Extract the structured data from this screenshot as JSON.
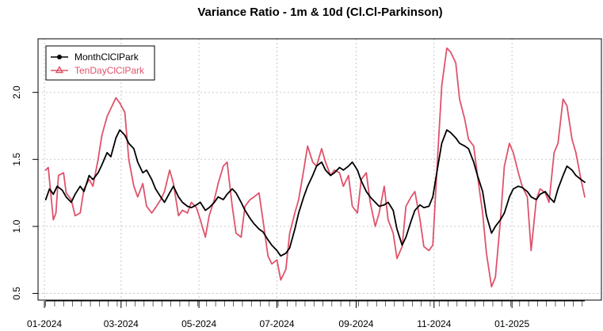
{
  "chart_data": {
    "type": "line",
    "title": "Variance Ratio - 1m & 10d (Cl.Cl-Parkinson)",
    "xlabel": "",
    "ylabel": "",
    "ylim": [
      0.45,
      2.4
    ],
    "yticks": [
      0.5,
      1.0,
      1.5,
      2.0
    ],
    "ytick_labels": [
      "0.5",
      "1.0",
      "1.5",
      "2.0"
    ],
    "xlim": [
      "2023-12-27",
      "2025-03-12"
    ],
    "xticks": [
      "2024-01-01",
      "2024-03-01",
      "2024-05-01",
      "2024-07-01",
      "2024-09-01",
      "2024-11-01",
      "2025-01-01"
    ],
    "xtick_labels": [
      "01-2024",
      "03-2024",
      "05-2024",
      "07-2024",
      "09-2024",
      "11-2024",
      "01-2025"
    ],
    "grid": true,
    "legend_position": "top-left",
    "series": [
      {
        "name": "MonthClClPark",
        "color": "#000000",
        "marker": "circle",
        "points": [
          [
            "2024-01-02",
            1.2
          ],
          [
            "2024-01-05",
            1.28
          ],
          [
            "2024-01-08",
            1.24
          ],
          [
            "2024-01-11",
            1.3
          ],
          [
            "2024-01-15",
            1.27
          ],
          [
            "2024-01-18",
            1.22
          ],
          [
            "2024-01-22",
            1.18
          ],
          [
            "2024-01-25",
            1.24
          ],
          [
            "2024-01-29",
            1.3
          ],
          [
            "2024-02-01",
            1.26
          ],
          [
            "2024-02-05",
            1.38
          ],
          [
            "2024-02-08",
            1.35
          ],
          [
            "2024-02-12",
            1.4
          ],
          [
            "2024-02-15",
            1.46
          ],
          [
            "2024-02-19",
            1.55
          ],
          [
            "2024-02-22",
            1.52
          ],
          [
            "2024-02-26",
            1.66
          ],
          [
            "2024-02-29",
            1.72
          ],
          [
            "2024-03-04",
            1.68
          ],
          [
            "2024-03-07",
            1.62
          ],
          [
            "2024-03-11",
            1.58
          ],
          [
            "2024-03-14",
            1.48
          ],
          [
            "2024-03-18",
            1.4
          ],
          [
            "2024-03-21",
            1.42
          ],
          [
            "2024-03-25",
            1.35
          ],
          [
            "2024-03-28",
            1.28
          ],
          [
            "2024-04-01",
            1.22
          ],
          [
            "2024-04-04",
            1.18
          ],
          [
            "2024-04-08",
            1.25
          ],
          [
            "2024-04-11",
            1.3
          ],
          [
            "2024-04-15",
            1.22
          ],
          [
            "2024-04-18",
            1.18
          ],
          [
            "2024-04-22",
            1.15
          ],
          [
            "2024-04-25",
            1.14
          ],
          [
            "2024-04-29",
            1.16
          ],
          [
            "2024-05-02",
            1.18
          ],
          [
            "2024-05-06",
            1.12
          ],
          [
            "2024-05-09",
            1.14
          ],
          [
            "2024-05-13",
            1.18
          ],
          [
            "2024-05-16",
            1.22
          ],
          [
            "2024-05-20",
            1.2
          ],
          [
            "2024-05-23",
            1.24
          ],
          [
            "2024-05-27",
            1.28
          ],
          [
            "2024-05-30",
            1.25
          ],
          [
            "2024-06-03",
            1.18
          ],
          [
            "2024-06-06",
            1.12
          ],
          [
            "2024-06-10",
            1.06
          ],
          [
            "2024-06-13",
            1.02
          ],
          [
            "2024-06-17",
            0.98
          ],
          [
            "2024-06-20",
            0.96
          ],
          [
            "2024-06-24",
            0.9
          ],
          [
            "2024-06-27",
            0.86
          ],
          [
            "2024-07-01",
            0.82
          ],
          [
            "2024-07-04",
            0.78
          ],
          [
            "2024-07-08",
            0.8
          ],
          [
            "2024-07-11",
            0.84
          ],
          [
            "2024-07-15",
            0.98
          ],
          [
            "2024-07-18",
            1.1
          ],
          [
            "2024-07-22",
            1.22
          ],
          [
            "2024-07-25",
            1.3
          ],
          [
            "2024-07-29",
            1.38
          ],
          [
            "2024-08-01",
            1.45
          ],
          [
            "2024-08-05",
            1.48
          ],
          [
            "2024-08-08",
            1.42
          ],
          [
            "2024-08-12",
            1.38
          ],
          [
            "2024-08-15",
            1.4
          ],
          [
            "2024-08-19",
            1.44
          ],
          [
            "2024-08-22",
            1.42
          ],
          [
            "2024-08-26",
            1.45
          ],
          [
            "2024-08-29",
            1.48
          ],
          [
            "2024-09-02",
            1.42
          ],
          [
            "2024-09-05",
            1.34
          ],
          [
            "2024-09-09",
            1.26
          ],
          [
            "2024-09-12",
            1.22
          ],
          [
            "2024-09-16",
            1.18
          ],
          [
            "2024-09-19",
            1.15
          ],
          [
            "2024-09-23",
            1.16
          ],
          [
            "2024-09-26",
            1.18
          ],
          [
            "2024-09-30",
            1.12
          ],
          [
            "2024-10-03",
            0.98
          ],
          [
            "2024-10-07",
            0.86
          ],
          [
            "2024-10-10",
            0.92
          ],
          [
            "2024-10-14",
            1.04
          ],
          [
            "2024-10-17",
            1.12
          ],
          [
            "2024-10-21",
            1.16
          ],
          [
            "2024-10-24",
            1.14
          ],
          [
            "2024-10-28",
            1.15
          ],
          [
            "2024-10-31",
            1.22
          ],
          [
            "2024-11-04",
            1.45
          ],
          [
            "2024-11-07",
            1.62
          ],
          [
            "2024-11-11",
            1.72
          ],
          [
            "2024-11-14",
            1.7
          ],
          [
            "2024-11-18",
            1.66
          ],
          [
            "2024-11-21",
            1.62
          ],
          [
            "2024-11-25",
            1.6
          ],
          [
            "2024-11-28",
            1.58
          ],
          [
            "2024-12-02",
            1.48
          ],
          [
            "2024-12-05",
            1.38
          ],
          [
            "2024-12-09",
            1.26
          ],
          [
            "2024-12-12",
            1.08
          ],
          [
            "2024-12-16",
            0.95
          ],
          [
            "2024-12-19",
            1.0
          ],
          [
            "2024-12-23",
            1.05
          ],
          [
            "2024-12-26",
            1.1
          ],
          [
            "2024-12-30",
            1.22
          ],
          [
            "2025-01-02",
            1.28
          ],
          [
            "2025-01-06",
            1.3
          ],
          [
            "2025-01-09",
            1.29
          ],
          [
            "2025-01-13",
            1.26
          ],
          [
            "2025-01-16",
            1.22
          ],
          [
            "2025-01-20",
            1.2
          ],
          [
            "2025-01-23",
            1.24
          ],
          [
            "2025-01-27",
            1.26
          ],
          [
            "2025-01-30",
            1.22
          ],
          [
            "2025-02-03",
            1.18
          ],
          [
            "2025-02-06",
            1.28
          ],
          [
            "2025-02-10",
            1.38
          ],
          [
            "2025-02-13",
            1.45
          ],
          [
            "2025-02-17",
            1.42
          ],
          [
            "2025-02-20",
            1.38
          ],
          [
            "2025-02-24",
            1.35
          ],
          [
            "2025-02-27",
            1.33
          ]
        ]
      },
      {
        "name": "TenDayClClPark",
        "color": "#DF536B",
        "marker": "triangle",
        "points": [
          [
            "2024-01-02",
            1.42
          ],
          [
            "2024-01-04",
            1.44
          ],
          [
            "2024-01-08",
            1.05
          ],
          [
            "2024-01-10",
            1.1
          ],
          [
            "2024-01-12",
            1.38
          ],
          [
            "2024-01-16",
            1.4
          ],
          [
            "2024-01-18",
            1.25
          ],
          [
            "2024-01-22",
            1.2
          ],
          [
            "2024-01-25",
            1.08
          ],
          [
            "2024-01-29",
            1.1
          ],
          [
            "2024-02-01",
            1.28
          ],
          [
            "2024-02-05",
            1.35
          ],
          [
            "2024-02-08",
            1.3
          ],
          [
            "2024-02-12",
            1.5
          ],
          [
            "2024-02-15",
            1.68
          ],
          [
            "2024-02-19",
            1.82
          ],
          [
            "2024-02-22",
            1.88
          ],
          [
            "2024-02-26",
            1.96
          ],
          [
            "2024-02-29",
            1.92
          ],
          [
            "2024-03-04",
            1.85
          ],
          [
            "2024-03-07",
            1.5
          ],
          [
            "2024-03-11",
            1.3
          ],
          [
            "2024-03-14",
            1.22
          ],
          [
            "2024-03-18",
            1.32
          ],
          [
            "2024-03-21",
            1.15
          ],
          [
            "2024-03-25",
            1.1
          ],
          [
            "2024-03-28",
            1.14
          ],
          [
            "2024-04-01",
            1.2
          ],
          [
            "2024-04-04",
            1.26
          ],
          [
            "2024-04-08",
            1.42
          ],
          [
            "2024-04-11",
            1.32
          ],
          [
            "2024-04-15",
            1.08
          ],
          [
            "2024-04-18",
            1.12
          ],
          [
            "2024-04-22",
            1.1
          ],
          [
            "2024-04-25",
            1.18
          ],
          [
            "2024-04-29",
            1.14
          ],
          [
            "2024-05-02",
            1.05
          ],
          [
            "2024-05-06",
            0.92
          ],
          [
            "2024-05-09",
            1.08
          ],
          [
            "2024-05-13",
            1.2
          ],
          [
            "2024-05-16",
            1.32
          ],
          [
            "2024-05-20",
            1.45
          ],
          [
            "2024-05-23",
            1.48
          ],
          [
            "2024-05-27",
            1.15
          ],
          [
            "2024-05-30",
            0.95
          ],
          [
            "2024-06-03",
            0.92
          ],
          [
            "2024-06-06",
            1.15
          ],
          [
            "2024-06-10",
            1.2
          ],
          [
            "2024-06-13",
            1.22
          ],
          [
            "2024-06-17",
            1.25
          ],
          [
            "2024-06-20",
            1.05
          ],
          [
            "2024-06-24",
            0.78
          ],
          [
            "2024-06-27",
            0.72
          ],
          [
            "2024-07-01",
            0.75
          ],
          [
            "2024-07-04",
            0.6
          ],
          [
            "2024-07-08",
            0.68
          ],
          [
            "2024-07-11",
            0.95
          ],
          [
            "2024-07-15",
            1.1
          ],
          [
            "2024-07-18",
            1.2
          ],
          [
            "2024-07-22",
            1.42
          ],
          [
            "2024-07-25",
            1.6
          ],
          [
            "2024-07-29",
            1.48
          ],
          [
            "2024-08-01",
            1.45
          ],
          [
            "2024-08-05",
            1.58
          ],
          [
            "2024-08-08",
            1.48
          ],
          [
            "2024-08-12",
            1.38
          ],
          [
            "2024-08-15",
            1.42
          ],
          [
            "2024-08-19",
            1.4
          ],
          [
            "2024-08-22",
            1.3
          ],
          [
            "2024-08-26",
            1.38
          ],
          [
            "2024-08-29",
            1.15
          ],
          [
            "2024-09-02",
            1.1
          ],
          [
            "2024-09-05",
            1.35
          ],
          [
            "2024-09-09",
            1.4
          ],
          [
            "2024-09-12",
            1.18
          ],
          [
            "2024-09-16",
            1.0
          ],
          [
            "2024-09-19",
            1.1
          ],
          [
            "2024-09-23",
            1.3
          ],
          [
            "2024-09-26",
            1.05
          ],
          [
            "2024-09-30",
            0.95
          ],
          [
            "2024-10-03",
            0.76
          ],
          [
            "2024-10-07",
            0.85
          ],
          [
            "2024-10-10",
            1.15
          ],
          [
            "2024-10-14",
            1.22
          ],
          [
            "2024-10-17",
            1.26
          ],
          [
            "2024-10-21",
            1.05
          ],
          [
            "2024-10-24",
            0.85
          ],
          [
            "2024-10-28",
            0.82
          ],
          [
            "2024-10-31",
            0.86
          ],
          [
            "2024-11-04",
            1.55
          ],
          [
            "2024-11-07",
            2.05
          ],
          [
            "2024-11-11",
            2.33
          ],
          [
            "2024-11-14",
            2.3
          ],
          [
            "2024-11-18",
            2.22
          ],
          [
            "2024-11-21",
            1.95
          ],
          [
            "2024-11-25",
            1.8
          ],
          [
            "2024-11-28",
            1.65
          ],
          [
            "2024-12-02",
            1.6
          ],
          [
            "2024-12-05",
            1.38
          ],
          [
            "2024-12-09",
            1.1
          ],
          [
            "2024-12-12",
            0.8
          ],
          [
            "2024-12-16",
            0.55
          ],
          [
            "2024-12-19",
            0.62
          ],
          [
            "2024-12-23",
            1.05
          ],
          [
            "2024-12-26",
            1.45
          ],
          [
            "2024-12-30",
            1.62
          ],
          [
            "2025-01-02",
            1.55
          ],
          [
            "2025-01-06",
            1.4
          ],
          [
            "2025-01-09",
            1.3
          ],
          [
            "2025-01-13",
            1.22
          ],
          [
            "2025-01-16",
            0.82
          ],
          [
            "2025-01-20",
            1.2
          ],
          [
            "2025-01-23",
            1.28
          ],
          [
            "2025-01-27",
            1.25
          ],
          [
            "2025-01-30",
            1.18
          ],
          [
            "2025-02-03",
            1.55
          ],
          [
            "2025-02-06",
            1.62
          ],
          [
            "2025-02-10",
            1.95
          ],
          [
            "2025-02-13",
            1.9
          ],
          [
            "2025-02-17",
            1.65
          ],
          [
            "2025-02-20",
            1.55
          ],
          [
            "2025-02-24",
            1.35
          ],
          [
            "2025-02-27",
            1.22
          ]
        ]
      }
    ]
  }
}
